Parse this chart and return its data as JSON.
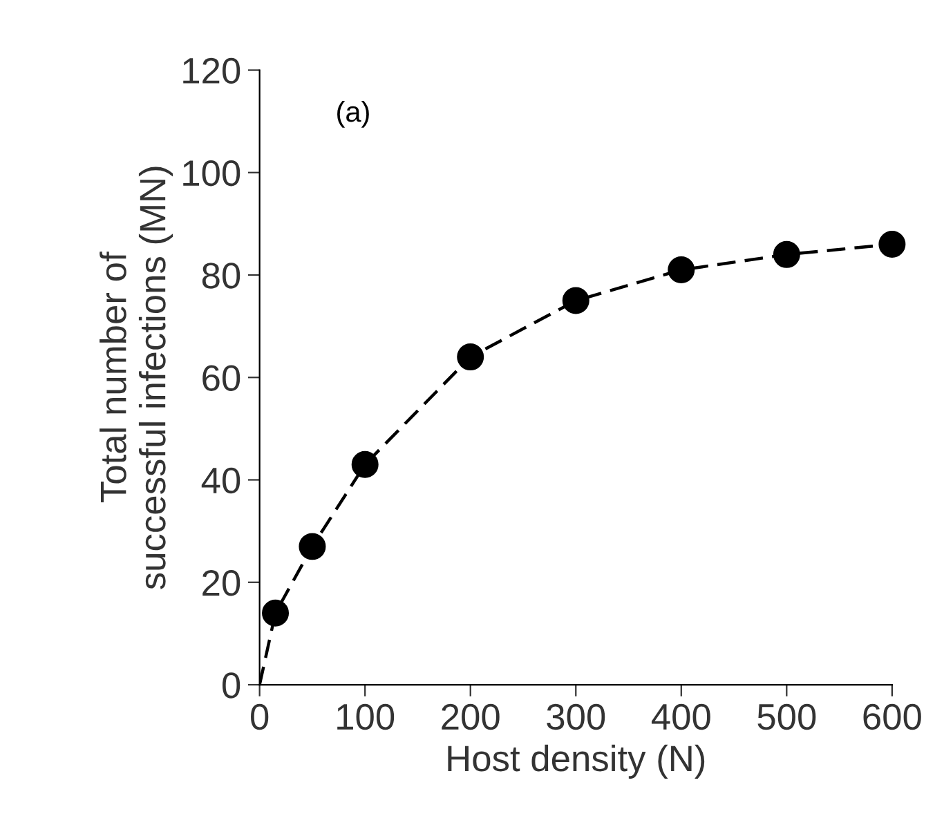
{
  "chart_data": {
    "type": "scatter",
    "xlabel": "Host density (N)",
    "ylabel": "Total number of\nsuccessful infections (MN)",
    "annotations": [
      "(a)"
    ],
    "x": [
      15,
      50,
      100,
      200,
      300,
      400,
      500,
      600
    ],
    "series": [
      {
        "color": "#000000",
        "values": [
          14,
          27,
          43,
          64,
          75,
          81,
          84,
          86
        ],
        "marker": "circle"
      },
      {
        "type": "line",
        "color": "#000000",
        "x": [
          0,
          15,
          50,
          100,
          200,
          300,
          400,
          500,
          600
        ],
        "values": [
          0,
          14,
          27,
          43,
          64,
          75,
          81,
          84,
          86
        ],
        "line_style": "dashed",
        "marker": "none"
      }
    ],
    "xlim": [
      0,
      600
    ],
    "xticks": [
      0,
      100,
      200,
      300,
      400,
      500,
      600
    ],
    "ylim": [
      0,
      120
    ],
    "yticks": [
      0,
      20,
      40,
      60,
      80,
      100,
      120
    ],
    "grid": false,
    "legend": false
  }
}
